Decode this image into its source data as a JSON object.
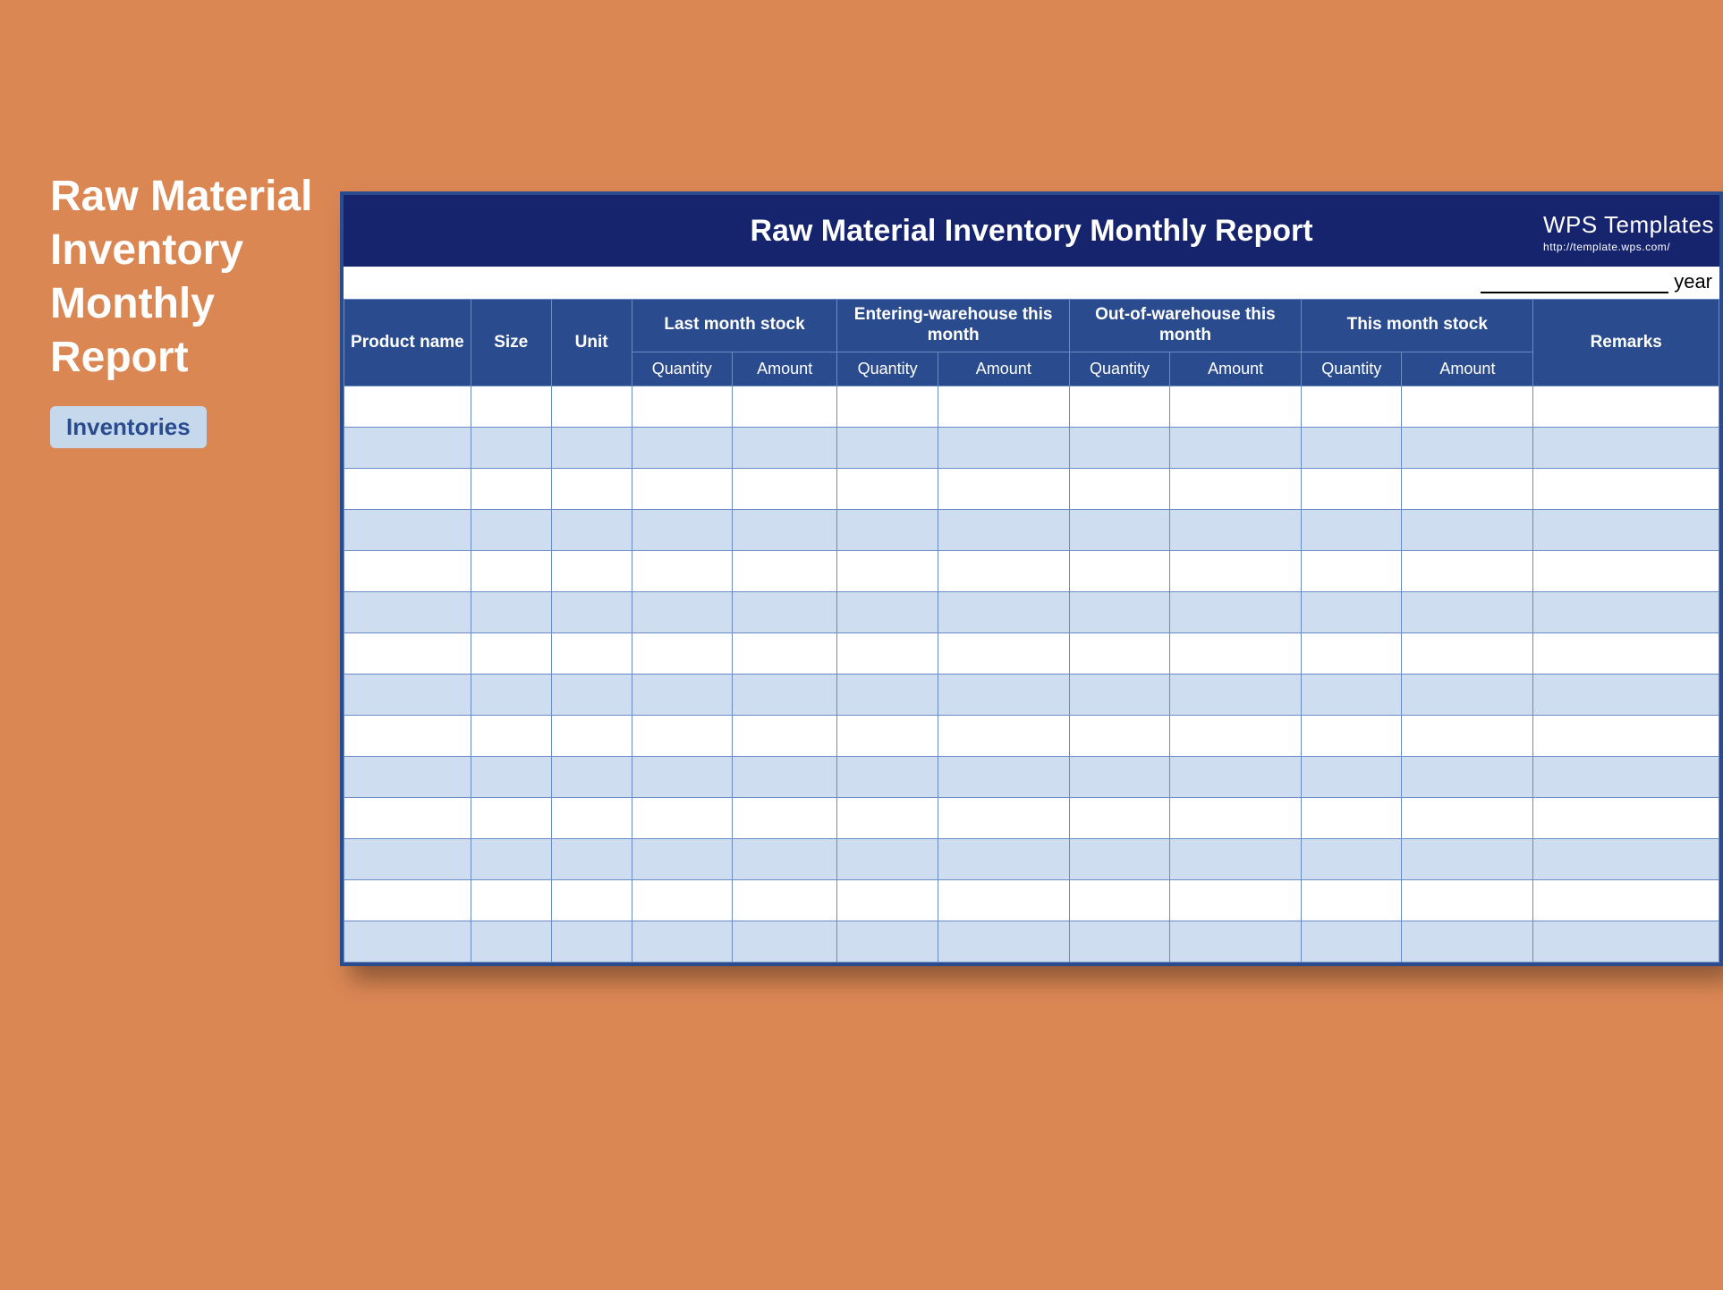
{
  "colors": {
    "page_bg": "#db8754",
    "titlebar_bg": "#16246e",
    "header_bg": "#2a4b8d",
    "header_text": "#ffffff",
    "grid_border": "#6b8bc4",
    "row_alt_bg": "#cfddf1",
    "row_bg": "#ffffff",
    "tag_bg": "#c6d9ec",
    "tag_text": "#2a4b8d",
    "sidebar_title": "#ffffff"
  },
  "sidebar": {
    "title": "Raw Material Inventory Monthly Report",
    "tag": "Inventories"
  },
  "sheet": {
    "title": "Raw Material Inventory Monthly Report",
    "brand_name": "WPS Templates",
    "brand_url": "http://template.wps.com/",
    "year_label": "year",
    "headers": {
      "product_name": "Product name",
      "size": "Size",
      "unit": "Unit",
      "last_month": "Last month stock",
      "entering": "Entering-warehouse this month",
      "outgoing": "Out-of-warehouse this month",
      "this_month": "This month stock",
      "remarks": "Remarks",
      "quantity": "Quantity",
      "amount": "Amount"
    },
    "row_count": 14,
    "column_count": 12
  }
}
